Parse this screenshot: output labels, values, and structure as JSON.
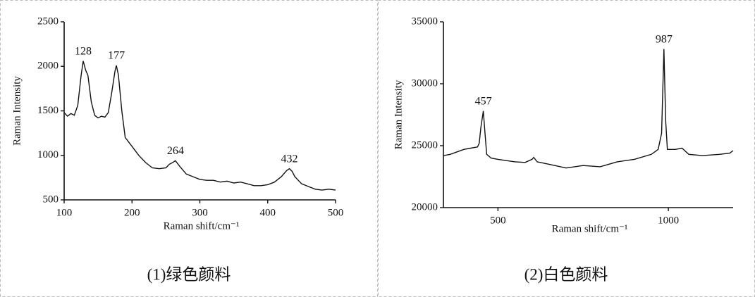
{
  "chart_data": [
    {
      "type": "line",
      "xlabel": "Raman shift/cm⁻¹",
      "ylabel": "Raman Intensity",
      "caption": "(1)绿色颜料",
      "color": "#111111",
      "xlim": [
        100,
        500
      ],
      "ylim": [
        500,
        2500
      ],
      "xticks": [
        100,
        200,
        300,
        400,
        500
      ],
      "yticks": [
        500,
        1000,
        1500,
        2000,
        2500
      ],
      "x": [
        100,
        105,
        110,
        115,
        120,
        125,
        128,
        132,
        135,
        140,
        145,
        150,
        155,
        160,
        165,
        170,
        175,
        177,
        180,
        185,
        190,
        200,
        210,
        220,
        230,
        240,
        250,
        255,
        260,
        264,
        270,
        280,
        290,
        300,
        310,
        320,
        330,
        340,
        350,
        360,
        370,
        380,
        390,
        400,
        410,
        420,
        428,
        432,
        436,
        440,
        450,
        460,
        470,
        480,
        490,
        500
      ],
      "values": [
        1480,
        1440,
        1470,
        1450,
        1560,
        1900,
        2060,
        1950,
        1900,
        1600,
        1450,
        1420,
        1440,
        1430,
        1480,
        1700,
        1950,
        2010,
        1900,
        1500,
        1200,
        1100,
        1000,
        920,
        860,
        850,
        860,
        900,
        920,
        940,
        880,
        790,
        760,
        730,
        720,
        720,
        700,
        710,
        690,
        700,
        680,
        660,
        660,
        670,
        700,
        760,
        830,
        850,
        820,
        760,
        680,
        650,
        620,
        610,
        620,
        610
      ],
      "annotations": [
        {
          "x": 128,
          "y": 2060
        },
        {
          "x": 177,
          "y": 2010
        },
        {
          "x": 264,
          "y": 940
        },
        {
          "x": 432,
          "y": 850
        }
      ]
    },
    {
      "type": "line",
      "xlabel": "Raman shift/cm⁻¹",
      "ylabel": "Raman Intensity",
      "caption": "(2)白色颜料",
      "color": "#111111",
      "xlim": [
        340,
        1190
      ],
      "ylim": [
        20000,
        35000
      ],
      "xticks": [
        500,
        1000
      ],
      "yticks": [
        20000,
        25000,
        30000,
        35000
      ],
      "x": [
        340,
        360,
        380,
        400,
        420,
        440,
        445,
        450,
        457,
        462,
        467,
        480,
        500,
        550,
        580,
        600,
        605,
        615,
        650,
        700,
        750,
        800,
        850,
        900,
        950,
        970,
        980,
        987,
        992,
        997,
        1020,
        1040,
        1060,
        1100,
        1150,
        1180,
        1190
      ],
      "values": [
        24200,
        24300,
        24500,
        24700,
        24800,
        24900,
        25200,
        26500,
        27800,
        26000,
        24300,
        24000,
        23900,
        23700,
        23650,
        23900,
        24050,
        23700,
        23500,
        23200,
        23400,
        23300,
        23700,
        23900,
        24300,
        24700,
        26000,
        32800,
        27000,
        24700,
        24700,
        24800,
        24300,
        24200,
        24300,
        24400,
        24600
      ],
      "annotations": [
        {
          "x": 457,
          "y": 27800
        },
        {
          "x": 987,
          "y": 32800
        }
      ]
    }
  ]
}
